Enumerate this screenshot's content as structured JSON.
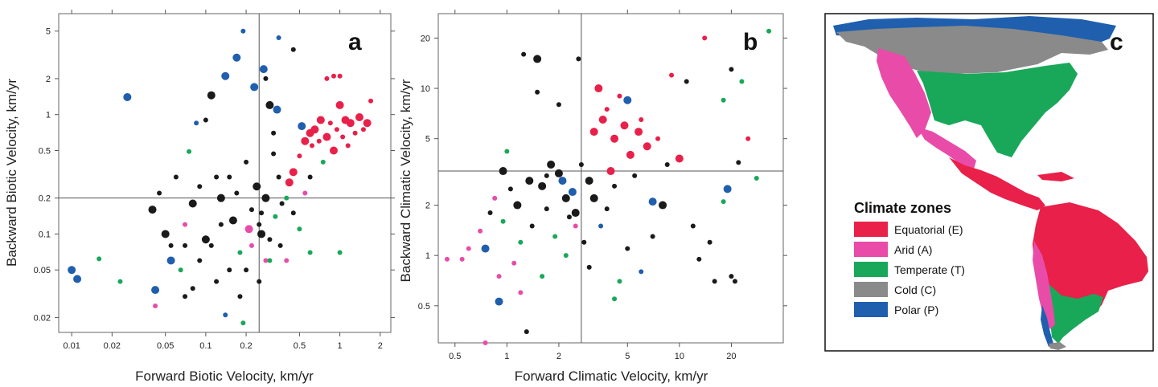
{
  "colors": {
    "E": "#e8204a",
    "A": "#e84ca8",
    "T": "#19a85a",
    "C": "#1a1a1a",
    "P": "#1f5fae",
    "ocean": "#ffffff",
    "axis": "#555555"
  },
  "chart_data": [
    {
      "type": "scatter",
      "panel": "a",
      "xlabel": "Forward Biotic Velocity, km/yr",
      "ylabel": "Backward Biotic Velocity, km/yr",
      "xscale": "log",
      "yscale": "log",
      "xlim": [
        0.008,
        2.4
      ],
      "ylim": [
        0.015,
        7
      ],
      "xticks": [
        0.01,
        0.02,
        0.05,
        0.1,
        0.2,
        0.5,
        1,
        2
      ],
      "xtick_labels": [
        "0.01",
        "0.02",
        "0.05",
        "0.1",
        "0.2",
        "0.5",
        "1",
        "2"
      ],
      "yticks": [
        0.02,
        0.05,
        0.1,
        0.2,
        0.5,
        1,
        2,
        5
      ],
      "ytick_labels": [
        "0.02",
        "0.05",
        "0.1",
        "0.2",
        "0.5",
        "1",
        "2",
        "5"
      ],
      "vline": 0.25,
      "hline": 0.2,
      "points": [
        [
          0.01,
          0.05,
          "P",
          2
        ],
        [
          0.011,
          0.042,
          "P",
          2
        ],
        [
          0.026,
          1.4,
          "P",
          2
        ],
        [
          0.016,
          0.062,
          "T",
          1
        ],
        [
          0.023,
          0.04,
          "T",
          1
        ],
        [
          0.042,
          0.034,
          "P",
          2
        ],
        [
          0.042,
          0.025,
          "A",
          1
        ],
        [
          0.04,
          0.16,
          "C",
          2
        ],
        [
          0.045,
          0.22,
          "C",
          1
        ],
        [
          0.05,
          0.1,
          "C",
          2
        ],
        [
          0.055,
          0.06,
          "P",
          2
        ],
        [
          0.055,
          0.08,
          "C",
          1
        ],
        [
          0.06,
          0.3,
          "C",
          1
        ],
        [
          0.065,
          0.05,
          "T",
          1
        ],
        [
          0.07,
          0.03,
          "C",
          1
        ],
        [
          0.07,
          0.12,
          "A",
          1
        ],
        [
          0.075,
          0.49,
          "T",
          1
        ],
        [
          0.08,
          0.18,
          "C",
          2
        ],
        [
          0.085,
          0.85,
          "P",
          1
        ],
        [
          0.09,
          0.06,
          "C",
          1
        ],
        [
          0.1,
          0.9,
          "C",
          1
        ],
        [
          0.11,
          1.45,
          "C",
          2
        ],
        [
          0.1,
          0.09,
          "C",
          2
        ],
        [
          0.12,
          0.3,
          "C",
          1
        ],
        [
          0.13,
          0.2,
          "C",
          2
        ],
        [
          0.14,
          2.1,
          "P",
          2
        ],
        [
          0.15,
          0.05,
          "C",
          1
        ],
        [
          0.16,
          0.13,
          "C",
          2
        ],
        [
          0.17,
          3.0,
          "P",
          2
        ],
        [
          0.18,
          0.07,
          "T",
          1
        ],
        [
          0.19,
          5.0,
          "P",
          1
        ],
        [
          0.2,
          0.4,
          "C",
          1
        ],
        [
          0.21,
          0.11,
          "A",
          2
        ],
        [
          0.22,
          0.08,
          "A",
          1
        ],
        [
          0.23,
          1.7,
          "P",
          2
        ],
        [
          0.24,
          0.25,
          "C",
          2
        ],
        [
          0.26,
          0.15,
          "C",
          1
        ],
        [
          0.27,
          2.4,
          "P",
          2
        ],
        [
          0.28,
          0.06,
          "A",
          1
        ],
        [
          0.3,
          1.2,
          "C",
          2
        ],
        [
          0.32,
          0.7,
          "C",
          1
        ],
        [
          0.34,
          1.1,
          "P",
          2
        ],
        [
          0.35,
          4.4,
          "P",
          1
        ],
        [
          0.37,
          0.18,
          "C",
          1
        ],
        [
          0.4,
          0.2,
          "T",
          1
        ],
        [
          0.42,
          0.27,
          "E",
          2
        ],
        [
          0.45,
          0.33,
          "E",
          2
        ],
        [
          0.5,
          0.45,
          "E",
          1
        ],
        [
          0.52,
          0.8,
          "P",
          2
        ],
        [
          0.55,
          0.6,
          "E",
          2
        ],
        [
          0.6,
          0.7,
          "E",
          2
        ],
        [
          0.62,
          0.55,
          "E",
          1
        ],
        [
          0.65,
          0.75,
          "E",
          2
        ],
        [
          0.7,
          0.6,
          "E",
          1
        ],
        [
          0.72,
          0.9,
          "E",
          2
        ],
        [
          0.75,
          0.4,
          "T",
          1
        ],
        [
          0.8,
          0.65,
          "E",
          2
        ],
        [
          0.85,
          0.85,
          "E",
          1
        ],
        [
          0.9,
          0.5,
          "E",
          2
        ],
        [
          0.95,
          0.75,
          "E",
          1
        ],
        [
          1.0,
          1.2,
          "E",
          2
        ],
        [
          1.05,
          0.65,
          "E",
          1
        ],
        [
          1.1,
          0.9,
          "E",
          2
        ],
        [
          1.15,
          0.55,
          "E",
          1
        ],
        [
          1.2,
          0.85,
          "E",
          2
        ],
        [
          1.3,
          0.7,
          "E",
          1
        ],
        [
          1.4,
          0.95,
          "E",
          2
        ],
        [
          1.5,
          0.75,
          "E",
          1
        ],
        [
          1.6,
          0.85,
          "E",
          2
        ],
        [
          1.7,
          1.3,
          "E",
          1
        ],
        [
          0.9,
          2.1,
          "E",
          1
        ],
        [
          1.0,
          2.1,
          "E",
          1
        ],
        [
          0.8,
          2.0,
          "E",
          1
        ],
        [
          1.0,
          0.07,
          "T",
          1
        ],
        [
          0.6,
          0.07,
          "T",
          1
        ],
        [
          0.5,
          0.11,
          "T",
          1
        ],
        [
          0.3,
          0.06,
          "T",
          1
        ],
        [
          0.25,
          0.04,
          "C",
          1
        ],
        [
          0.2,
          0.05,
          "C",
          1
        ],
        [
          0.12,
          0.04,
          "C",
          1
        ],
        [
          0.18,
          0.03,
          "C",
          1
        ],
        [
          0.19,
          0.018,
          "T",
          1
        ],
        [
          0.14,
          0.021,
          "P",
          1
        ],
        [
          0.08,
          0.035,
          "C",
          1
        ],
        [
          0.35,
          0.3,
          "C",
          1
        ],
        [
          0.15,
          0.3,
          "C",
          1
        ],
        [
          0.09,
          0.25,
          "C",
          1
        ],
        [
          0.07,
          0.08,
          "C",
          1
        ],
        [
          0.25,
          0.12,
          "C",
          1
        ],
        [
          0.33,
          0.14,
          "T",
          1
        ],
        [
          0.45,
          0.15,
          "C",
          1
        ],
        [
          0.6,
          0.3,
          "C",
          1
        ],
        [
          0.4,
          0.06,
          "A",
          1
        ],
        [
          0.55,
          0.22,
          "A",
          1
        ],
        [
          0.28,
          0.2,
          "C",
          2
        ],
        [
          0.22,
          0.16,
          "C",
          1
        ],
        [
          0.17,
          0.22,
          "C",
          1
        ],
        [
          0.13,
          0.12,
          "C",
          1
        ],
        [
          0.11,
          0.08,
          "C",
          1
        ],
        [
          0.3,
          0.09,
          "C",
          1
        ],
        [
          0.26,
          0.1,
          "C",
          2
        ],
        [
          0.36,
          0.08,
          "C",
          1
        ],
        [
          0.45,
          3.5,
          "C",
          1
        ],
        [
          0.28,
          2.0,
          "C",
          1
        ],
        [
          0.32,
          0.47,
          "C",
          1
        ]
      ]
    },
    {
      "type": "scatter",
      "panel": "b",
      "xlabel": "Forward Climatic Velocity, km/yr",
      "ylabel": "Backward Climatic Velocity, km/yr",
      "xscale": "log",
      "yscale": "log",
      "xlim": [
        0.4,
        40
      ],
      "ylim": [
        0.3,
        28
      ],
      "xticks": [
        0.5,
        1,
        2,
        5,
        10,
        20
      ],
      "xtick_labels": [
        "0.5",
        "1",
        "2",
        "5",
        "10",
        "20"
      ],
      "yticks": [
        0.5,
        1,
        2,
        5,
        10,
        20
      ],
      "ytick_labels": [
        "0.5",
        "1",
        "2",
        "5",
        "10",
        "20"
      ],
      "vline": 2.7,
      "hline": 3.2,
      "points": [
        [
          0.45,
          0.95,
          "A",
          1
        ],
        [
          0.55,
          0.95,
          "A",
          1
        ],
        [
          0.6,
          1.1,
          "A",
          1
        ],
        [
          0.7,
          1.4,
          "A",
          1
        ],
        [
          0.75,
          0.3,
          "A",
          1
        ],
        [
          0.75,
          1.1,
          "P",
          2
        ],
        [
          0.8,
          1.8,
          "C",
          1
        ],
        [
          0.85,
          2.2,
          "A",
          1
        ],
        [
          0.9,
          0.53,
          "P",
          2
        ],
        [
          0.95,
          1.6,
          "T",
          1
        ],
        [
          0.95,
          3.2,
          "C",
          2
        ],
        [
          1.0,
          4.2,
          "T",
          1
        ],
        [
          1.05,
          2.5,
          "C",
          1
        ],
        [
          1.1,
          0.9,
          "A",
          1
        ],
        [
          1.15,
          2.0,
          "C",
          2
        ],
        [
          1.2,
          1.2,
          "T",
          1
        ],
        [
          1.25,
          16,
          "C",
          1
        ],
        [
          1.3,
          0.35,
          "C",
          1
        ],
        [
          1.35,
          2.8,
          "C",
          2
        ],
        [
          1.4,
          1.5,
          "C",
          1
        ],
        [
          1.5,
          15,
          "C",
          2
        ],
        [
          1.5,
          9.5,
          "C",
          1
        ],
        [
          1.6,
          2.6,
          "C",
          2
        ],
        [
          1.7,
          1.9,
          "C",
          1
        ],
        [
          1.8,
          3.5,
          "C",
          2
        ],
        [
          1.9,
          1.3,
          "T",
          1
        ],
        [
          2.0,
          8,
          "C",
          1
        ],
        [
          2.1,
          2.8,
          "P",
          2
        ],
        [
          2.2,
          2.2,
          "C",
          2
        ],
        [
          2.3,
          1.7,
          "C",
          1
        ],
        [
          2.4,
          2.4,
          "P",
          2
        ],
        [
          2.5,
          1.8,
          "C",
          2
        ],
        [
          2.6,
          15,
          "C",
          1
        ],
        [
          2.7,
          3.5,
          "C",
          1
        ],
        [
          2.8,
          1.2,
          "C",
          1
        ],
        [
          3.0,
          2.8,
          "C",
          2
        ],
        [
          3.2,
          5.5,
          "E",
          2
        ],
        [
          3.4,
          10,
          "E",
          2
        ],
        [
          3.6,
          6.5,
          "E",
          2
        ],
        [
          3.8,
          7.5,
          "E",
          1
        ],
        [
          4.0,
          3.2,
          "E",
          2
        ],
        [
          4.2,
          5,
          "E",
          2
        ],
        [
          4.5,
          9,
          "E",
          1
        ],
        [
          4.8,
          6,
          "E",
          2
        ],
        [
          5.0,
          8.5,
          "P",
          2
        ],
        [
          5.2,
          4,
          "E",
          2
        ],
        [
          5.5,
          3,
          "C",
          1
        ],
        [
          5.8,
          5.5,
          "E",
          2
        ],
        [
          6.0,
          6.5,
          "E",
          1
        ],
        [
          6.5,
          4.5,
          "E",
          2
        ],
        [
          7.0,
          2.1,
          "P",
          2
        ],
        [
          7.5,
          5,
          "E",
          1
        ],
        [
          8.0,
          2.0,
          "C",
          2
        ],
        [
          8.5,
          3.5,
          "C",
          1
        ],
        [
          9.0,
          12,
          "E",
          1
        ],
        [
          10,
          3.8,
          "E",
          2
        ],
        [
          11,
          11,
          "C",
          1
        ],
        [
          12,
          1.5,
          "C",
          1
        ],
        [
          13,
          0.95,
          "C",
          1
        ],
        [
          14,
          20,
          "E",
          1
        ],
        [
          15,
          1.2,
          "C",
          1
        ],
        [
          16,
          0.7,
          "C",
          1
        ],
        [
          18,
          2.1,
          "T",
          1
        ],
        [
          19,
          2.5,
          "P",
          2
        ],
        [
          20,
          0.75,
          "C",
          1
        ],
        [
          21,
          0.7,
          "C",
          1
        ],
        [
          22,
          3.6,
          "C",
          1
        ],
        [
          23,
          11,
          "T",
          1
        ],
        [
          25,
          5,
          "E",
          1
        ],
        [
          28,
          2.9,
          "T",
          1
        ],
        [
          33,
          22,
          "T",
          1
        ],
        [
          20,
          13,
          "C",
          1
        ],
        [
          18,
          8.5,
          "T",
          1
        ],
        [
          4.5,
          0.7,
          "T",
          1
        ],
        [
          4.2,
          0.55,
          "T",
          1
        ],
        [
          3.0,
          0.85,
          "C",
          1
        ],
        [
          3.5,
          1.5,
          "P",
          1
        ],
        [
          6.0,
          0.8,
          "P",
          1
        ],
        [
          5.0,
          1.1,
          "C",
          1
        ],
        [
          7.0,
          1.3,
          "C",
          1
        ],
        [
          2.2,
          1.0,
          "T",
          1
        ],
        [
          1.6,
          0.75,
          "T",
          1
        ],
        [
          1.2,
          0.6,
          "A",
          1
        ],
        [
          0.9,
          0.75,
          "A",
          1
        ],
        [
          2.5,
          1.5,
          "A",
          1
        ],
        [
          3.2,
          2.2,
          "C",
          2
        ],
        [
          3.8,
          1.9,
          "C",
          1
        ],
        [
          4.2,
          2.6,
          "C",
          1
        ],
        [
          2.0,
          3.1,
          "C",
          2
        ],
        [
          1.7,
          3.0,
          "C",
          1
        ]
      ]
    }
  ],
  "panel_c": {
    "letter": "c",
    "legend_title": "Climate zones",
    "legend": [
      {
        "label": "Equatorial (E)",
        "color": "#e8204a"
      },
      {
        "label": "Arid (A)",
        "color": "#e84ca8"
      },
      {
        "label": "Temperate (T)",
        "color": "#19a85a"
      },
      {
        "label": "Cold (C)",
        "color": "#8a8a8a"
      },
      {
        "label": "Polar (P)",
        "color": "#1f5fae"
      }
    ]
  },
  "panel_letters": {
    "a": "a",
    "b": "b",
    "c": "c"
  }
}
